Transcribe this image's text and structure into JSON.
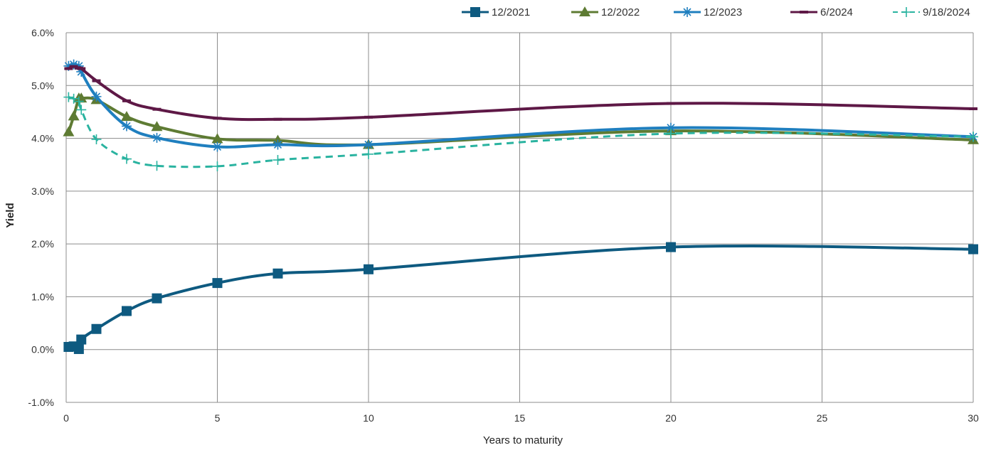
{
  "chart_data": {
    "type": "line",
    "xlabel": "Years to maturity",
    "ylabel": "Yield",
    "xlim": [
      0,
      30
    ],
    "ylim": [
      -1.0,
      6.0
    ],
    "x_ticks": [
      0,
      5,
      10,
      15,
      20,
      25,
      30
    ],
    "x_tick_labels": [
      "0",
      "5",
      "10",
      "15",
      "20",
      "25",
      "30"
    ],
    "y_ticks": [
      -1.0,
      0.0,
      1.0,
      2.0,
      3.0,
      4.0,
      5.0,
      6.0
    ],
    "y_tick_labels": [
      "-1.0%",
      "0.0%",
      "1.0%",
      "2.0%",
      "3.0%",
      "4.0%",
      "5.0%",
      "6.0%"
    ],
    "grid": true,
    "legend_position": "top-right",
    "series": [
      {
        "name": "12/2021",
        "color": "#0e5a80",
        "marker": "square",
        "dash": "solid",
        "x": [
          0.08,
          0.25,
          0.42,
          0.5,
          1,
          2,
          3,
          5,
          7,
          10,
          20,
          30
        ],
        "y": [
          0.05,
          0.06,
          0.01,
          0.19,
          0.39,
          0.73,
          0.97,
          1.26,
          1.44,
          1.52,
          1.94,
          1.9
        ]
      },
      {
        "name": "12/2022",
        "color": "#5e7b33",
        "marker": "triangle",
        "dash": "solid",
        "x": [
          0.08,
          0.25,
          0.42,
          0.5,
          1,
          2,
          3,
          5,
          7,
          10,
          20,
          30
        ],
        "y": [
          4.12,
          4.42,
          4.76,
          4.76,
          4.73,
          4.41,
          4.22,
          3.99,
          3.96,
          3.88,
          4.14,
          3.97
        ]
      },
      {
        "name": "12/2023",
        "color": "#1f7fbf",
        "marker": "asterisk",
        "dash": "solid",
        "x": [
          0.08,
          0.25,
          0.42,
          0.5,
          1,
          2,
          3,
          5,
          7,
          10,
          20,
          30
        ],
        "y": [
          5.37,
          5.4,
          5.37,
          5.26,
          4.79,
          4.23,
          4.01,
          3.84,
          3.88,
          3.88,
          4.2,
          4.03
        ]
      },
      {
        "name": "6/2024",
        "color": "#5e1846",
        "marker": "dash",
        "dash": "solid",
        "x": [
          0.08,
          0.25,
          0.42,
          0.5,
          1,
          2,
          3,
          5,
          7,
          10,
          20,
          30
        ],
        "y": [
          5.32,
          5.36,
          5.33,
          5.32,
          5.09,
          4.71,
          4.55,
          4.38,
          4.36,
          4.4,
          4.66,
          4.56
        ]
      },
      {
        "name": "9/18/2024",
        "color": "#2ab3a0",
        "marker": "plus",
        "dash": "dashed",
        "x": [
          0.08,
          0.25,
          0.42,
          0.5,
          1,
          2,
          3,
          5,
          7,
          10,
          20,
          30
        ],
        "y": [
          4.78,
          4.75,
          4.7,
          4.54,
          3.98,
          3.61,
          3.48,
          3.47,
          3.59,
          3.7,
          4.09,
          4.03
        ]
      }
    ]
  }
}
